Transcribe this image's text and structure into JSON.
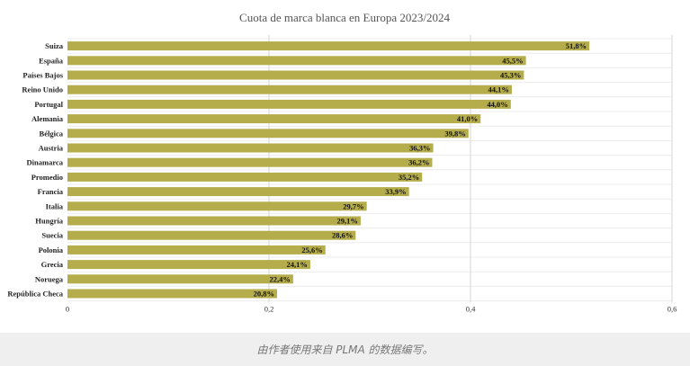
{
  "chart_data": {
    "type": "bar",
    "orientation": "horizontal",
    "title": "Cuota de marca blanca en Europa 2023/2024",
    "categories": [
      "Suiza",
      "España",
      "Países Bajos",
      "Reino Unido",
      "Portugal",
      "Alemania",
      "Bélgica",
      "Austria",
      "Dinamarca",
      "Promedio",
      "Francia",
      "Italia",
      "Hungría",
      "Suecia",
      "Polonia",
      "Grecia",
      "Noruega",
      "República Checa"
    ],
    "values": [
      0.518,
      0.455,
      0.453,
      0.441,
      0.44,
      0.41,
      0.398,
      0.363,
      0.362,
      0.352,
      0.339,
      0.297,
      0.291,
      0.286,
      0.256,
      0.241,
      0.224,
      0.208
    ],
    "value_labels": [
      "51,8%",
      "45,5%",
      "45,3%",
      "44,1%",
      "44,0%",
      "41,0%",
      "39,8%",
      "36,3%",
      "36,2%",
      "35,2%",
      "33,9%",
      "29,7%",
      "29,1%",
      "28,6%",
      "25,6%",
      "24,1%",
      "22,4%",
      "20,8%"
    ],
    "xlim": [
      0,
      0.6
    ],
    "xticks": [
      0,
      0.2,
      0.4,
      0.6
    ],
    "xtick_labels": [
      "0",
      "0,2",
      "0,4",
      "0,6"
    ],
    "grid": true,
    "legend": "none",
    "bar_color": "#b5ad4c"
  },
  "caption": "由作者使用来自 PLMA 的数据编写。"
}
